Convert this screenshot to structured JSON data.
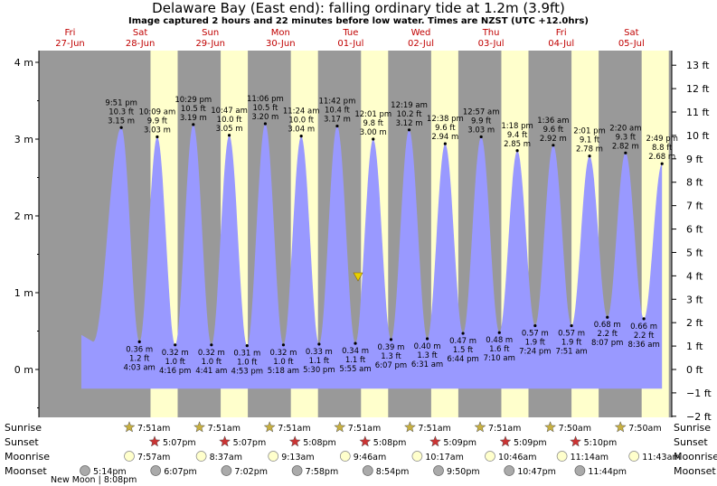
{
  "title": "Delaware Bay (East end): falling  ordinary tide at 1.2m (3.9ft)",
  "subtitle": "Image captured 2 hours and 22 minutes before low water. Times are NZST (UTC +12.0hrs)",
  "colors": {
    "night": "#999999",
    "day": "#ffffcc",
    "water": "#9999ff",
    "sun": "#c8b040",
    "sunset": "#cc3333",
    "moonrise": "#ffffcc",
    "moonset": "#aaaaaa",
    "day_label": "#c00000"
  },
  "chart_data": {
    "type": "area",
    "days": [
      {
        "dow": "Fri",
        "date": "27-Jun"
      },
      {
        "dow": "Sat",
        "date": "28-Jun"
      },
      {
        "dow": "Sun",
        "date": "29-Jun"
      },
      {
        "dow": "Mon",
        "date": "30-Jun"
      },
      {
        "dow": "Tue",
        "date": "01-Jul"
      },
      {
        "dow": "Wed",
        "date": "02-Jul"
      },
      {
        "dow": "Thu",
        "date": "03-Jul"
      },
      {
        "dow": "Fri",
        "date": "04-Jul"
      },
      {
        "dow": "Sat",
        "date": "05-Jul"
      }
    ],
    "ylabel_left": "m",
    "ylabel_right": "ft",
    "y_ticks_m": [
      "4 m",
      "3 m",
      "2 m",
      "1 m",
      "0 m"
    ],
    "y_ticks_ft": [
      "13 ft",
      "12 ft",
      "11 ft",
      "10 ft",
      "9 ft",
      "8 ft",
      "7 ft",
      "6 ft",
      "5 ft",
      "4 ft",
      "3 ft",
      "2 ft",
      "1 ft",
      "0 ft",
      "−1 ft",
      "−2 ft"
    ],
    "ylim_m": [
      -0.6,
      4.2
    ],
    "current_level_m": 1.2,
    "tides": [
      {
        "type": "high",
        "time": "9:51 pm",
        "ft": "10.3 ft",
        "m": 3.15,
        "label_m": "3.15 m"
      },
      {
        "type": "low",
        "time": "4:03 am",
        "ft": "1.2 ft",
        "m": 0.36,
        "label_m": "0.36 m"
      },
      {
        "type": "high",
        "time": "10:09 am",
        "ft": "9.9 ft",
        "m": 3.03,
        "label_m": "3.03 m"
      },
      {
        "type": "low",
        "time": "4:16 pm",
        "ft": "1.0 ft",
        "m": 0.32,
        "label_m": "0.32 m"
      },
      {
        "type": "high",
        "time": "10:29 pm",
        "ft": "10.5 ft",
        "m": 3.19,
        "label_m": "3.19 m"
      },
      {
        "type": "low",
        "time": "4:41 am",
        "ft": "1.0 ft",
        "m": 0.32,
        "label_m": "0.32 m"
      },
      {
        "type": "high",
        "time": "10:47 am",
        "ft": "10.0 ft",
        "m": 3.05,
        "label_m": "3.05 m"
      },
      {
        "type": "low",
        "time": "4:53 pm",
        "ft": "1.0 ft",
        "m": 0.31,
        "label_m": "0.31 m"
      },
      {
        "type": "high",
        "time": "11:06 pm",
        "ft": "10.5 ft",
        "m": 3.2,
        "label_m": "3.20 m"
      },
      {
        "type": "low",
        "time": "5:18 am",
        "ft": "1.0 ft",
        "m": 0.32,
        "label_m": "0.32 m"
      },
      {
        "type": "high",
        "time": "11:24 am",
        "ft": "10.0 ft",
        "m": 3.04,
        "label_m": "3.04 m"
      },
      {
        "type": "low",
        "time": "5:30 pm",
        "ft": "1.1 ft",
        "m": 0.33,
        "label_m": "0.33 m"
      },
      {
        "type": "high",
        "time": "11:42 pm",
        "ft": "10.4 ft",
        "m": 3.17,
        "label_m": "3.17 m"
      },
      {
        "type": "low",
        "time": "5:55 am",
        "ft": "1.1 ft",
        "m": 0.34,
        "label_m": "0.34 m"
      },
      {
        "type": "high",
        "time": "12:01 pm",
        "ft": "9.8 ft",
        "m": 3.0,
        "label_m": "3.00 m"
      },
      {
        "type": "low",
        "time": "6:07 pm",
        "ft": "1.3 ft",
        "m": 0.39,
        "label_m": "0.39 m"
      },
      {
        "type": "high",
        "time": "12:19 am",
        "ft": "10.2 ft",
        "m": 3.12,
        "label_m": "3.12 m"
      },
      {
        "type": "low",
        "time": "6:31 am",
        "ft": "1.3 ft",
        "m": 0.4,
        "label_m": "0.40 m"
      },
      {
        "type": "high",
        "time": "12:38 pm",
        "ft": "9.6 ft",
        "m": 2.94,
        "label_m": "2.94 m"
      },
      {
        "type": "low",
        "time": "6:44 pm",
        "ft": "1.5 ft",
        "m": 0.47,
        "label_m": "0.47 m"
      },
      {
        "type": "high",
        "time": "12:57 am",
        "ft": "9.9 ft",
        "m": 3.03,
        "label_m": "3.03 m"
      },
      {
        "type": "low",
        "time": "7:10 am",
        "ft": "1.6 ft",
        "m": 0.48,
        "label_m": "0.48 m"
      },
      {
        "type": "high",
        "time": "1:18 pm",
        "ft": "9.4 ft",
        "m": 2.85,
        "label_m": "2.85 m"
      },
      {
        "type": "low",
        "time": "7:24 pm",
        "ft": "1.9 ft",
        "m": 0.57,
        "label_m": "0.57 m"
      },
      {
        "type": "high",
        "time": "1:36 am",
        "ft": "9.6 ft",
        "m": 2.92,
        "label_m": "2.92 m"
      },
      {
        "type": "low",
        "time": "7:51 am",
        "ft": "1.9 ft",
        "m": 0.57,
        "label_m": "0.57 m"
      },
      {
        "type": "high",
        "time": "2:01 pm",
        "ft": "9.1 ft",
        "m": 2.78,
        "label_m": "2.78 m"
      },
      {
        "type": "low",
        "time": "8:07 pm",
        "ft": "2.2 ft",
        "m": 0.68,
        "label_m": "0.68 m"
      },
      {
        "type": "high",
        "time": "2:20 am",
        "ft": "9.3 ft",
        "m": 2.82,
        "label_m": "2.82 m"
      },
      {
        "type": "low",
        "time": "8:36 am",
        "ft": "2.2 ft",
        "m": 0.66,
        "label_m": "0.66 m"
      },
      {
        "type": "high",
        "time": "2:49 pm",
        "ft": "8.8 ft",
        "m": 2.68,
        "label_m": "2.68 m"
      }
    ],
    "events": {
      "row_labels": [
        "Sunrise",
        "Sunset",
        "Moonrise",
        "Moonset"
      ],
      "sunrise": [
        "7:51am",
        "7:51am",
        "7:51am",
        "7:51am",
        "7:51am",
        "7:51am",
        "7:50am",
        "7:50am"
      ],
      "sunset": [
        "5:07pm",
        "5:07pm",
        "5:08pm",
        "5:08pm",
        "5:09pm",
        "5:09pm",
        "5:10pm"
      ],
      "moonrise": [
        "7:57am",
        "8:37am",
        "9:13am",
        "9:46am",
        "10:17am",
        "10:46am",
        "11:14am",
        "11:43am"
      ],
      "moonset": [
        "5:14pm",
        "6:07pm",
        "7:02pm",
        "7:58pm",
        "8:54pm",
        "9:50pm",
        "10:47pm",
        "11:44pm"
      ],
      "new_moon": "New Moon | 8:08pm"
    }
  }
}
